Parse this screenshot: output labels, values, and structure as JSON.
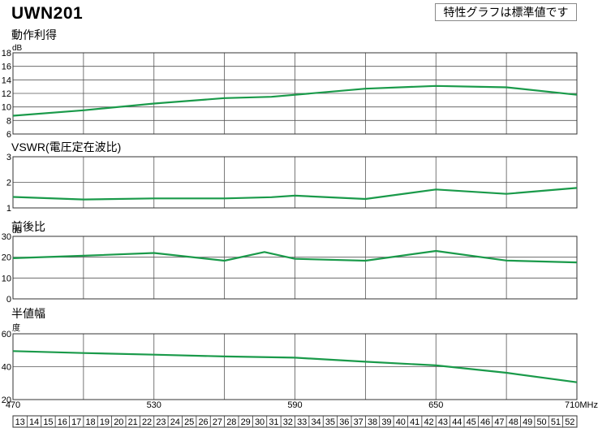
{
  "header": {
    "model": "UWN201",
    "note": "特性グラフは標準値です"
  },
  "colors": {
    "series": "#1a9a4a",
    "grid": "#555555",
    "frame": "#333333"
  },
  "x_axis": {
    "range": [
      470,
      710
    ],
    "ticks": [
      {
        "value": 470,
        "label": "470"
      },
      {
        "value": 530,
        "label": "530"
      },
      {
        "value": 590,
        "label": "590"
      },
      {
        "value": 650,
        "label": "650"
      },
      {
        "value": 710,
        "label": "710MHz"
      }
    ],
    "gridlines": [
      500,
      530,
      560,
      590,
      620,
      650,
      680
    ],
    "channels": [
      "13",
      "14",
      "15",
      "16",
      "17",
      "18",
      "19",
      "20",
      "21",
      "22",
      "23",
      "24",
      "25",
      "26",
      "27",
      "28",
      "29",
      "30",
      "31",
      "32",
      "33",
      "34",
      "35",
      "36",
      "37",
      "38",
      "39",
      "40",
      "41",
      "42",
      "43",
      "44",
      "45",
      "46",
      "47",
      "48",
      "49",
      "50",
      "51",
      "52"
    ]
  },
  "chart_data": [
    {
      "type": "line",
      "title": "動作利得",
      "ylabel": "dB",
      "ylim": [
        6,
        18
      ],
      "yticks": [
        6,
        8,
        10,
        12,
        14,
        16,
        18
      ],
      "grid": true,
      "x": [
        470,
        500,
        530,
        560,
        580,
        620,
        650,
        680,
        710
      ],
      "values": [
        8.7,
        9.5,
        10.5,
        11.3,
        11.5,
        12.7,
        13.1,
        12.9,
        11.8
      ]
    },
    {
      "type": "line",
      "title": "VSWR(電圧定在波比)",
      "ylabel": "",
      "ylim": [
        1,
        3
      ],
      "yticks": [
        1,
        2,
        3
      ],
      "grid": true,
      "x": [
        470,
        500,
        530,
        560,
        580,
        590,
        620,
        650,
        680,
        710
      ],
      "values": [
        1.43,
        1.33,
        1.37,
        1.37,
        1.42,
        1.48,
        1.35,
        1.72,
        1.55,
        1.78
      ]
    },
    {
      "type": "line",
      "title": "前後比",
      "ylabel": "dB",
      "ylim": [
        0,
        30
      ],
      "yticks": [
        0,
        10,
        20,
        30
      ],
      "grid": true,
      "x": [
        470,
        500,
        530,
        560,
        577,
        590,
        620,
        650,
        680,
        710
      ],
      "values": [
        19.5,
        20.7,
        22,
        18.3,
        22.5,
        19.2,
        18.3,
        23,
        18.4,
        17.5
      ]
    },
    {
      "type": "line",
      "title": "半値幅",
      "ylabel": "度",
      "ylim": [
        20,
        60
      ],
      "yticks": [
        20,
        40,
        60
      ],
      "grid": true,
      "x": [
        470,
        500,
        530,
        560,
        590,
        620,
        650,
        680,
        710
      ],
      "values": [
        49.5,
        48.3,
        47.3,
        46.2,
        45.5,
        43,
        40.8,
        36.3,
        30.5
      ]
    }
  ]
}
